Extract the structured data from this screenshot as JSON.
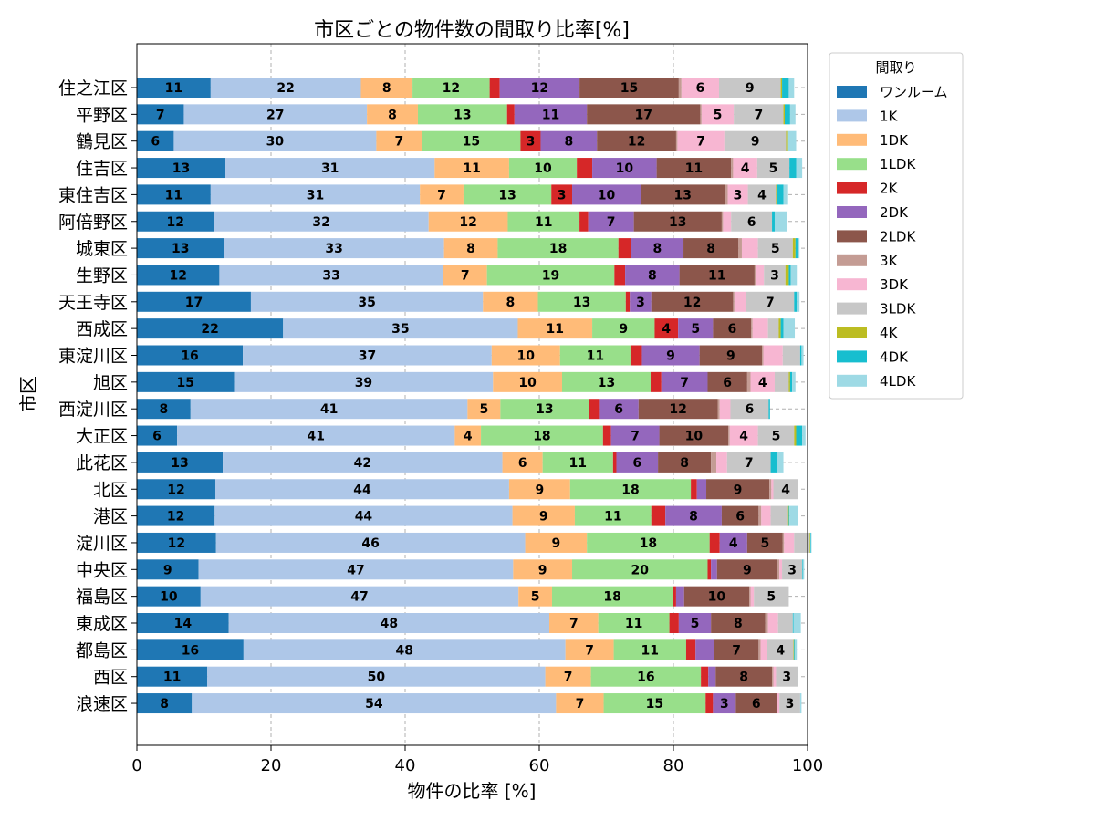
{
  "chart_data": {
    "type": "bar",
    "orientation": "horizontal",
    "stacked": true,
    "title": "市区ごとの物件数の間取り比率[%]",
    "xlabel": "物件の比率 [%]",
    "ylabel": "市区",
    "xlim": [
      0,
      100
    ],
    "xticks": [
      "0",
      "20",
      "40",
      "60",
      "80",
      "100"
    ],
    "grid": true,
    "legend_title": "間取り",
    "legend_position": "upper right, outside plot",
    "categories": [
      "住之江区",
      "平野区",
      "鶴見区",
      "住吉区",
      "東住吉区",
      "阿倍野区",
      "城東区",
      "生野区",
      "天王寺区",
      "西成区",
      "東淀川区",
      "旭区",
      "西淀川区",
      "大正区",
      "此花区",
      "北区",
      "港区",
      "淀川区",
      "中央区",
      "福島区",
      "東成区",
      "都島区",
      "西区",
      "浪速区"
    ],
    "series": [
      {
        "name": "ワンルーム",
        "color": "#1f77b4",
        "values": [
          11,
          7,
          5.5,
          13.2,
          11,
          11.5,
          13,
          12.3,
          17,
          21.8,
          15.8,
          14.5,
          8,
          6,
          12.8,
          11.7,
          11.6,
          11.8,
          9.2,
          9.5,
          13.7,
          15.9,
          10.5,
          8.2
        ]
      },
      {
        "name": "1K",
        "color": "#aec7e8",
        "values": [
          22.4,
          27.3,
          30.2,
          31.2,
          31.2,
          32,
          32.8,
          33.4,
          34.6,
          35,
          37.1,
          38.6,
          41.3,
          41.4,
          41.7,
          43.8,
          44.4,
          46.1,
          46.9,
          47.4,
          47.8,
          48,
          50.4,
          54.3
        ]
      },
      {
        "name": "1DK",
        "color": "#ffbb78",
        "values": [
          7.7,
          7.6,
          6.8,
          11.1,
          6.5,
          11.8,
          8,
          6.5,
          8.2,
          11.1,
          10.2,
          10.3,
          4.9,
          3.9,
          6,
          9.1,
          9.3,
          9.2,
          8.8,
          5,
          7.3,
          7.2,
          6.8,
          7.1
        ]
      },
      {
        "name": "1LDK",
        "color": "#98df8a",
        "values": [
          11.5,
          13.3,
          14.7,
          10.1,
          13.1,
          10.7,
          18,
          19,
          13.1,
          9.3,
          10.5,
          13.2,
          13.2,
          18.2,
          10.5,
          18,
          11.4,
          18.3,
          20.2,
          18,
          10.6,
          10.8,
          16.4,
          15.2
        ]
      },
      {
        "name": "2K",
        "color": "#d62728",
        "values": [
          1.5,
          1.1,
          3,
          2.3,
          3.1,
          1.3,
          1.9,
          1.6,
          0.6,
          3.5,
          1.7,
          1.6,
          1.5,
          1.2,
          0.5,
          0.9,
          2.1,
          1.5,
          0.5,
          0.5,
          1.4,
          1.4,
          1.1,
          1.1
        ]
      },
      {
        "name": "2DK",
        "color": "#9467bd",
        "values": [
          11.9,
          10.8,
          8.4,
          9.6,
          10.2,
          6.8,
          7.8,
          8.1,
          3.2,
          5.2,
          8.6,
          6.9,
          5.9,
          7.2,
          6.2,
          1.4,
          8.4,
          4.1,
          0.9,
          1.2,
          4.8,
          2.8,
          1.1,
          3.4
        ]
      },
      {
        "name": "2LDK",
        "color": "#8c564b",
        "values": [
          14.8,
          16.9,
          11.8,
          11.1,
          12.6,
          13.1,
          8.2,
          11.2,
          12.2,
          5.7,
          9.3,
          5.9,
          11.8,
          10.3,
          7.9,
          9.4,
          5.5,
          5.3,
          9,
          9.7,
          8.1,
          6.6,
          8.4,
          6.1
        ]
      },
      {
        "name": "3K",
        "color": "#c49c94",
        "values": [
          0.4,
          0.2,
          0.2,
          0.3,
          0.4,
          0.2,
          0.5,
          0.2,
          0.2,
          0.2,
          0.2,
          0.5,
          0.3,
          0.2,
          0.8,
          0.3,
          0.4,
          0.2,
          0.3,
          0.2,
          0.4,
          0.3,
          0.2,
          0.1
        ]
      },
      {
        "name": "3DK",
        "color": "#f7b6d2",
        "values": [
          5.6,
          4.8,
          7,
          3.6,
          3,
          1.2,
          2.4,
          1.2,
          1.7,
          2.3,
          2.9,
          3.6,
          1.6,
          4.2,
          1.6,
          0.3,
          1.4,
          1.5,
          0.4,
          0.5,
          1.5,
          1,
          0.4,
          0.3
        ]
      },
      {
        "name": "3LDK",
        "color": "#c7c7c7",
        "values": [
          9.2,
          7.4,
          9.2,
          4.8,
          4.2,
          6.1,
          5.2,
          3.2,
          7.2,
          1.6,
          2.6,
          2.1,
          5.7,
          5.4,
          6.5,
          3.7,
          2.6,
          2.3,
          3,
          5.2,
          2.2,
          3.9,
          3.2,
          3.1
        ]
      },
      {
        "name": "4K",
        "color": "#bcbd22",
        "values": [
          0.2,
          0.2,
          0.3,
          0,
          0.2,
          0,
          0.4,
          0.5,
          0,
          0.3,
          0,
          0.2,
          0,
          0.3,
          0,
          0,
          0.1,
          0.1,
          0,
          0,
          0,
          0.1,
          0,
          0
        ]
      },
      {
        "name": "4DK",
        "color": "#17becf",
        "values": [
          1,
          0.8,
          0,
          1,
          0.9,
          0.4,
          0.3,
          0.3,
          0.4,
          0.4,
          0.2,
          0.3,
          0.2,
          0.9,
          0.9,
          0,
          0.1,
          0.1,
          0.1,
          0,
          0.1,
          0.1,
          0,
          0
        ]
      },
      {
        "name": "4LDK",
        "color": "#9edae5",
        "values": [
          0.8,
          0.8,
          1.2,
          0.9,
          0.7,
          1.9,
          0.3,
          0.9,
          0.4,
          1.7,
          0.3,
          0.5,
          0,
          0.5,
          1,
          0,
          1.3,
          0.1,
          0.2,
          0,
          1.1,
          0.3,
          0.1,
          0.2
        ]
      }
    ],
    "bar_labels_shown_when_at_least": 3
  }
}
